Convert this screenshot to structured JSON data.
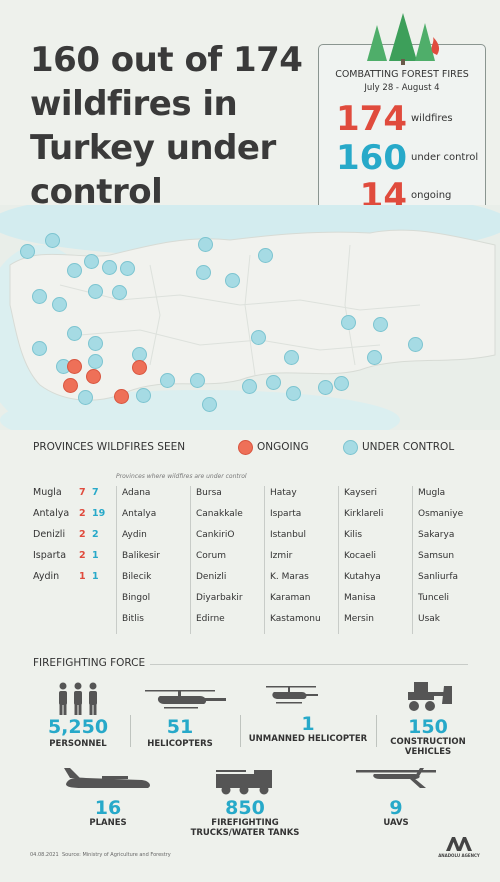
{
  "title": "160 out of 174 wildfires in Turkey under control",
  "stats_box": {
    "heading": "COMBATTING FOREST FIRES",
    "date_range": "July 28 - August 4",
    "rows": [
      {
        "value": "174",
        "label": "wildfires",
        "color": "#e04b3d"
      },
      {
        "value": "160",
        "label": "under control",
        "color": "#27a9c9"
      },
      {
        "value": "14",
        "label": "ongoing",
        "color": "#e04b3d"
      }
    ]
  },
  "legend": {
    "title": "PROVINCES WILDFIRES SEEN",
    "ongoing": "ONGOING",
    "under_control": "UNDER CONTROL",
    "ongoing_color": "#ee7058",
    "under_control_color": "#a6dbe4"
  },
  "note": "Provinces where wildfires are under control",
  "province_counts": [
    {
      "name": "Mugla",
      "ongoing": "7",
      "controlled": "7"
    },
    {
      "name": "Antalya",
      "ongoing": "2",
      "controlled": "19"
    },
    {
      "name": "Denizli",
      "ongoing": "2",
      "controlled": "2"
    },
    {
      "name": "Isparta",
      "ongoing": "2",
      "controlled": "1"
    },
    {
      "name": "Aydin",
      "ongoing": "1",
      "controlled": "1"
    }
  ],
  "controlled_columns": [
    [
      "Adana",
      "Antalya",
      "Aydin",
      "Balikesir",
      "Bilecik",
      "Bingol",
      "Bitlis"
    ],
    [
      "Bursa",
      "Canakkale",
      "CankiriO",
      "Corum",
      "Denizli",
      "Diyarbakir",
      "Edirne"
    ],
    [
      "Hatay",
      "Isparta",
      "Istanbul",
      "Izmir",
      "K. Maras",
      "Karaman",
      "Kastamonu"
    ],
    [
      "Kayseri",
      "Kirklareli",
      "Kilis",
      "Kocaeli",
      "Kutahya",
      "Manisa",
      "Mersin"
    ],
    [
      "Mugla",
      "Osmaniye",
      "Sakarya",
      "Samsun",
      "Sanliurfa",
      "Tunceli",
      "Usak"
    ]
  ],
  "force": {
    "title": "FIREFIGHTING FORCE",
    "items": [
      {
        "value": "5,250",
        "label": "PERSONNEL",
        "icon": "personnel-icon"
      },
      {
        "value": "51",
        "label": "HELICOPTERS",
        "icon": "helicopter-icon"
      },
      {
        "value": "1",
        "label": "UNMANNED HELICOPTER",
        "icon": "unmanned-helicopter-icon"
      },
      {
        "value": "150",
        "label": "CONSTRUCTION VEHICLES",
        "icon": "bulldozer-icon"
      },
      {
        "value": "16",
        "label": "PLANES",
        "icon": "plane-icon"
      },
      {
        "value": "850",
        "label": "FIREFIGHTING TRUCKS/WATER TANKS",
        "icon": "fire-truck-icon"
      },
      {
        "value": "9",
        "label": "UAVS",
        "icon": "uav-icon"
      }
    ]
  },
  "footer": {
    "date": "04.08.2021",
    "source": "Source: Ministry of Agriculture and Forestry",
    "agency": "ANADOLU AGENCY",
    "logo_text": "AA"
  }
}
